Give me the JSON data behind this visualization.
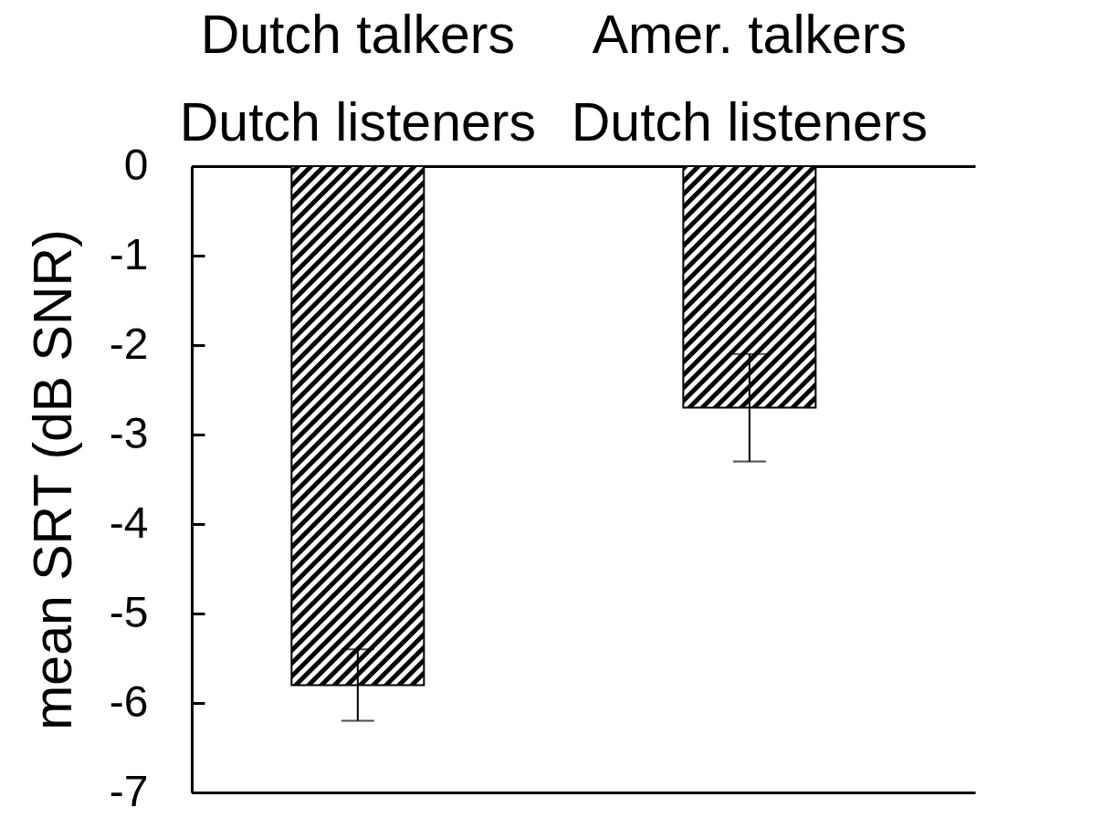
{
  "chart_data": {
    "type": "bar",
    "ylabel": "mean SRT (dB SNR)",
    "categories": [
      null,
      null
    ],
    "values": [
      -5.8,
      -2.7
    ],
    "errors": [
      0.4,
      0.6
    ],
    "color": "#000000",
    "ylim": [
      -7,
      0
    ],
    "yticks": [
      0,
      -1,
      -2,
      -3,
      -4,
      -5,
      -6,
      -7
    ],
    "tick_labels": "y",
    "annotations": [
      "Dutch talkers",
      "Dutch listeners",
      "Amer. talkers",
      "Dutch listeners"
    ]
  }
}
